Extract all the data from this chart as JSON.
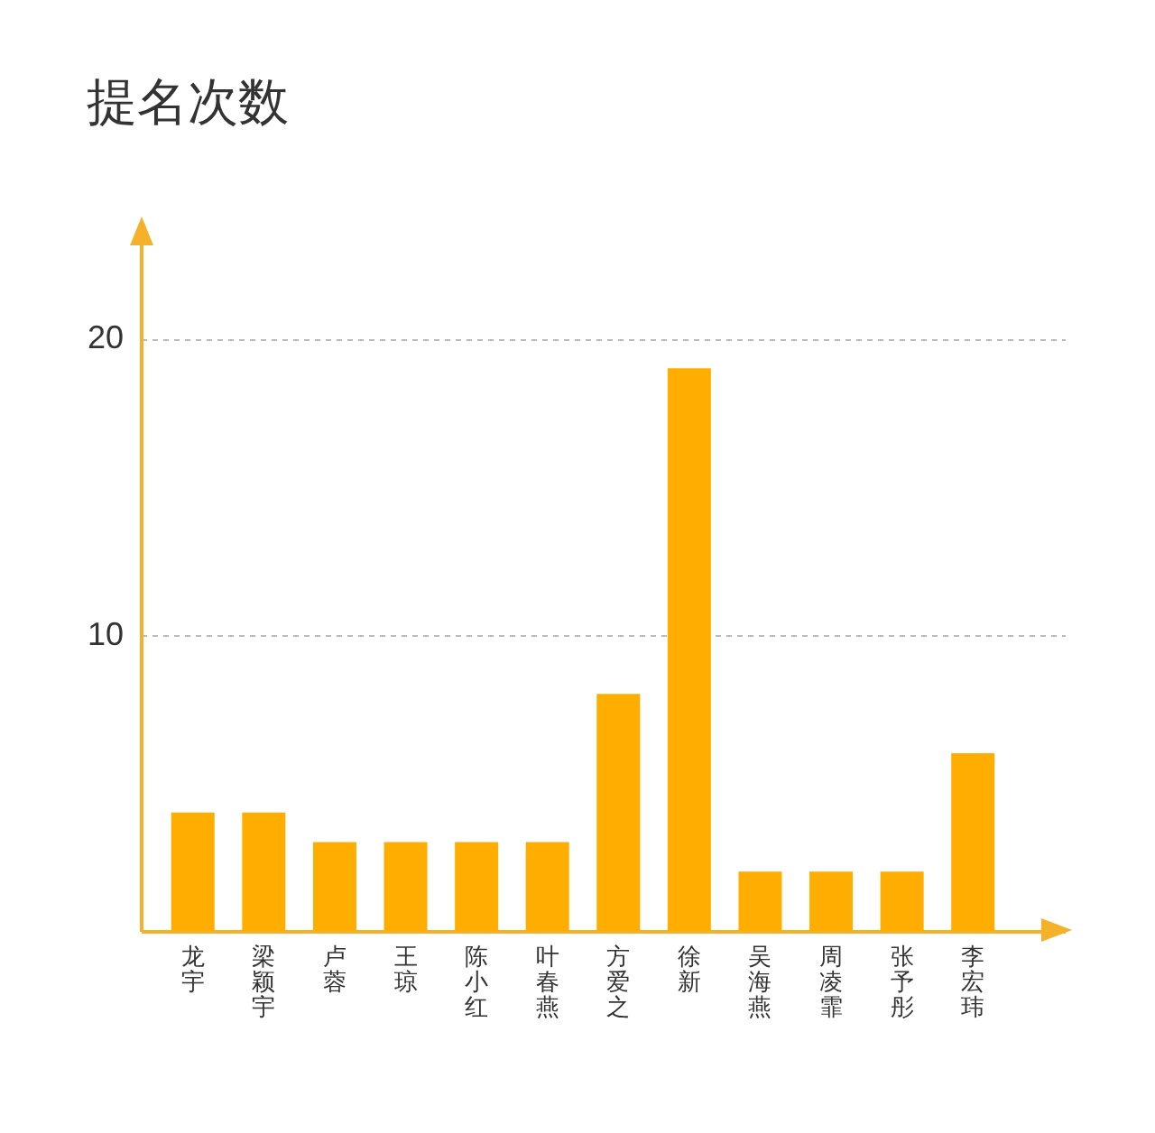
{
  "chart_data": {
    "type": "bar",
    "title": "提名次数",
    "categories": [
      "龙宇",
      "梁颖宇",
      "卢蓉",
      "王琼",
      "陈小红",
      "叶春燕",
      "方爱之",
      "徐新",
      "吴海燕",
      "周凌霏",
      "张予彤",
      "李宏玮"
    ],
    "values": [
      4,
      4,
      3,
      3,
      3,
      3,
      8,
      19,
      2,
      2,
      2,
      6
    ],
    "color": "#ffae00",
    "ylim": [
      0,
      24
    ],
    "yticks": [
      10,
      20
    ],
    "grid": "y"
  }
}
